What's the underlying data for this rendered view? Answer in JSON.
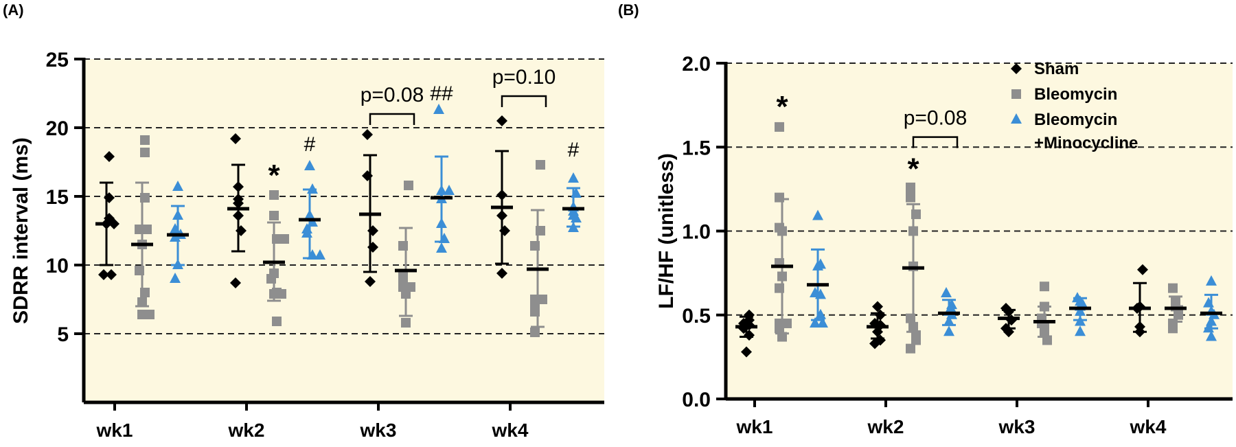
{
  "chart_data": [
    {
      "panel_label": "(A)",
      "type": "scatter",
      "ylabel": "SDRR interval (ms)",
      "ylim": [
        0,
        25
      ],
      "yticks": [
        "5",
        "10",
        "15",
        "20",
        "25"
      ],
      "ytick_values": [
        5,
        10,
        15,
        20,
        25
      ],
      "categories": [
        "wk1",
        "wk2",
        "wk3",
        "wk4"
      ],
      "grid": "dashed horizontal",
      "series": [
        {
          "name": "Sham",
          "color": "#000000",
          "marker": "diamond",
          "points": [
            [
              17.9,
              14.9,
              13.4,
              13.0,
              13.0,
              9.3,
              9.3
            ],
            [
              19.2,
              15.7,
              14.8,
              14.5,
              13.6,
              12.5,
              8.7
            ],
            [
              19.5,
              16.5,
              12.5,
              11.3,
              8.8
            ],
            [
              20.5,
              15.1,
              13.6,
              12.5,
              9.4
            ]
          ],
          "mean": [
            13.0,
            14.1,
            13.7,
            14.2
          ],
          "err_high": [
            16.0,
            17.3,
            18.0,
            18.3
          ],
          "err_low": [
            10.0,
            11.0,
            9.5,
            10.1
          ]
        },
        {
          "name": "Bleomycin",
          "color": "#8e8e8e",
          "marker": "square",
          "points": [
            [
              19.1,
              18.2,
              14.9,
              12.6,
              12.6,
              11.5,
              9.6,
              8.0,
              7.3,
              6.4,
              6.4
            ],
            [
              15.1,
              13.6,
              11.9,
              11.9,
              9.4,
              9.0,
              8.0,
              7.9,
              7.9,
              5.9
            ],
            [
              15.8,
              11.4,
              9.3,
              9.0,
              8.4,
              8.4,
              7.9,
              5.8
            ],
            [
              17.3,
              12.5,
              11.4,
              7.5,
              7.5,
              6.9,
              6.6,
              5.1
            ]
          ],
          "mean": [
            11.5,
            10.2,
            9.6,
            9.7
          ],
          "err_high": [
            16.0,
            13.1,
            12.7,
            14.0
          ],
          "err_low": [
            7.0,
            7.4,
            6.3,
            5.5
          ]
        },
        {
          "name": "Bleomycin +Minocycline",
          "color": "#3b8ed6",
          "marker": "triangle",
          "points": [
            [
              15.7,
              13.6,
              12.6,
              12.2,
              12.0,
              10.0,
              9.0
            ],
            [
              17.2,
              15.5,
              13.6,
              13.1,
              12.6,
              12.3,
              10.7,
              10.7
            ],
            [
              21.3,
              15.4,
              15.4,
              14.8,
              13.0,
              11.9,
              11.2
            ],
            [
              16.3,
              15.2,
              14.2,
              13.9,
              13.6,
              13.4,
              12.7
            ]
          ],
          "mean": [
            12.2,
            13.3,
            14.9,
            14.1
          ],
          "err_high": [
            14.3,
            15.5,
            17.9,
            15.6
          ],
          "err_low": [
            10.0,
            10.5,
            11.7,
            12.8
          ]
        }
      ],
      "annotations": [
        {
          "text": "*",
          "category": "wk2",
          "series": 1,
          "y": 16.9
        },
        {
          "text": "#",
          "category": "wk2",
          "series": 2,
          "y": 18.8
        },
        {
          "text": "##",
          "category": "wk3",
          "series": 2,
          "y": 22.5
        },
        {
          "text": "#",
          "category": "wk4",
          "series": 2,
          "y": 18.4
        }
      ],
      "brackets": [
        {
          "text": "p=0.08",
          "category": "wk3",
          "from_series": 0,
          "to_series": 1,
          "y": 21.0
        },
        {
          "text": "p=0.10",
          "category": "wk4",
          "from_series": 0,
          "to_series": 1,
          "y": 22.3
        }
      ]
    },
    {
      "panel_label": "(B)",
      "type": "scatter",
      "ylabel": "LF/HF (unitless)",
      "ylim": [
        0,
        2.0
      ],
      "yticks": [
        "0.0",
        "0.5",
        "1.0",
        "1.5",
        "2.0"
      ],
      "ytick_values": [
        0,
        0.5,
        1.0,
        1.5,
        2.0
      ],
      "categories": [
        "wk1",
        "wk2",
        "wk3",
        "wk4"
      ],
      "grid": "dashed horizontal",
      "legend": {
        "position": "top-right",
        "entries": [
          "Sham",
          "Bleomycin",
          "Bleomycin",
          "+Minocycline"
        ]
      },
      "series": [
        {
          "name": "Sham",
          "color": "#000000",
          "marker": "diamond",
          "points": [
            [
              0.5,
              0.47,
              0.45,
              0.44,
              0.42,
              0.38,
              0.28
            ],
            [
              0.55,
              0.5,
              0.45,
              0.44,
              0.4,
              0.35,
              0.33
            ],
            [
              0.54,
              0.52,
              0.47,
              0.42,
              0.4
            ],
            [
              0.77,
              0.55,
              0.54,
              0.43,
              0.4
            ]
          ],
          "mean": [
            0.43,
            0.43,
            0.48,
            0.54
          ],
          "err_high": [
            0.49,
            0.51,
            0.53,
            0.69
          ],
          "err_low": [
            0.37,
            0.36,
            0.42,
            0.4
          ]
        },
        {
          "name": "Bleomycin",
          "color": "#8e8e8e",
          "marker": "square",
          "points": [
            [
              1.62,
              1.2,
              1.02,
              1.0,
              0.81,
              0.73,
              0.66,
              0.45,
              0.45,
              0.42,
              0.37
            ],
            [
              1.26,
              1.23,
              1.2,
              1.1,
              1.0,
              0.79,
              0.48,
              0.43,
              0.38,
              0.35,
              0.3
            ],
            [
              0.67,
              0.55,
              0.48,
              0.45,
              0.43,
              0.4,
              0.35
            ],
            [
              0.66,
              0.58,
              0.55,
              0.53,
              0.5,
              0.45,
              0.42
            ]
          ],
          "mean": [
            0.79,
            0.78,
            0.46,
            0.54
          ],
          "err_high": [
            1.19,
            1.16,
            0.55,
            0.61
          ],
          "err_low": [
            0.39,
            0.4,
            0.37,
            0.46
          ]
        },
        {
          "name": "Bleomycin +Minocycline",
          "color": "#3b8ed6",
          "marker": "triangle",
          "points": [
            [
              1.09,
              0.8,
              0.79,
              0.63,
              0.62,
              0.5,
              0.45,
              0.45
            ],
            [
              0.63,
              0.56,
              0.53,
              0.52,
              0.5,
              0.46,
              0.4
            ],
            [
              0.6,
              0.58,
              0.56,
              0.55,
              0.52,
              0.46,
              0.4
            ],
            [
              0.7,
              0.57,
              0.52,
              0.5,
              0.46,
              0.42,
              0.37
            ]
          ],
          "mean": [
            0.68,
            0.51,
            0.54,
            0.51
          ],
          "err_high": [
            0.89,
            0.59,
            0.6,
            0.62
          ],
          "err_low": [
            0.47,
            0.44,
            0.47,
            0.42
          ]
        }
      ],
      "annotations": [
        {
          "text": "*",
          "category": "wk1",
          "series": 1,
          "y": 1.77
        },
        {
          "text": "*",
          "category": "wk2",
          "series": 1,
          "y": 1.4
        }
      ],
      "brackets": [
        {
          "text": "p=0.08",
          "category": "wk2",
          "from_series": 1,
          "to_series": 2,
          "y": 1.56
        }
      ]
    }
  ]
}
